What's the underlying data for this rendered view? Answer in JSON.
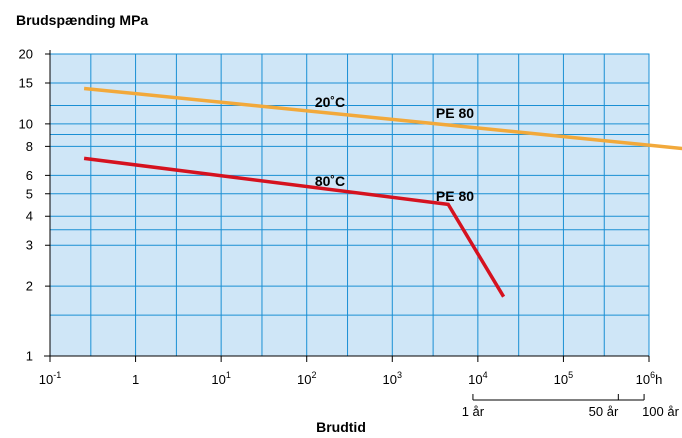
{
  "chart_data": {
    "type": "line",
    "ylabel": "Brudspænding MPa",
    "xlabel": "Brudtid",
    "x_scale": "log",
    "y_scale": "log",
    "xlim_exp": [
      -1,
      6
    ],
    "ylim": [
      1,
      20
    ],
    "grid": true,
    "background": "#cfe6f7",
    "grid_color": "#1a8fd4",
    "x_tick_labels": [
      {
        "exp": -1,
        "base": "10",
        "sup": "-1"
      },
      {
        "exp": 0,
        "base": "1",
        "sup": ""
      },
      {
        "exp": 1,
        "base": "10",
        "sup": "1"
      },
      {
        "exp": 2,
        "base": "10",
        "sup": "2"
      },
      {
        "exp": 3,
        "base": "10",
        "sup": "3"
      },
      {
        "exp": 4,
        "base": "10",
        "sup": "4"
      },
      {
        "exp": 5,
        "base": "10",
        "sup": "5"
      },
      {
        "exp": 6,
        "base": "10",
        "sup": "6",
        "suffix": "h"
      }
    ],
    "y_tick_values": [
      1,
      2,
      3,
      4,
      5,
      6,
      8,
      10,
      15,
      20
    ],
    "y_tick_labels": [
      "1",
      "2",
      "3",
      "4",
      "5",
      "6",
      "8",
      "10",
      "15",
      "20"
    ],
    "series": [
      {
        "color": "#f2a93b",
        "points": [
          [
            0.25,
            14.2
          ],
          [
            8000000,
            7.5
          ]
        ],
        "label": "20˚C",
        "sublabel": "PE 80"
      },
      {
        "color": "#d5121f",
        "points": [
          [
            0.25,
            7.1
          ],
          [
            4500,
            4.5
          ],
          [
            20000,
            1.8
          ]
        ],
        "label": "80˚C",
        "sublabel": "PE 80"
      }
    ],
    "time_axis": {
      "ticks": [
        {
          "label": "1 år",
          "hours": 8760
        },
        {
          "label": "50 år",
          "hours": 438000
        },
        {
          "label": "100 år",
          "hours": 876000
        }
      ]
    }
  }
}
